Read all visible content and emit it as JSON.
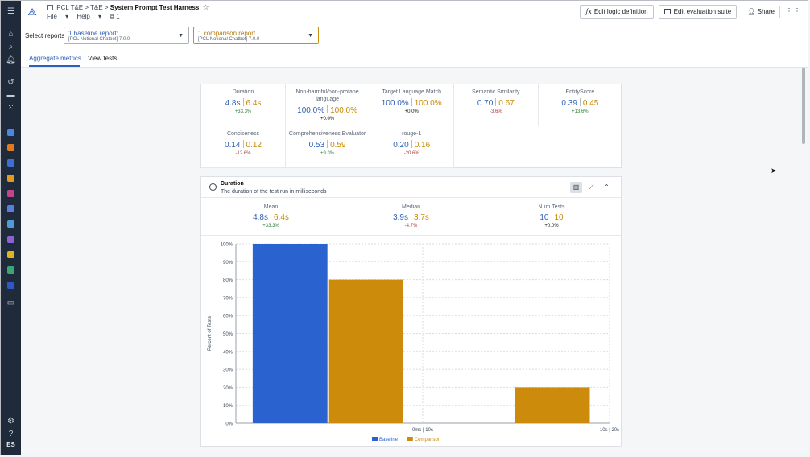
{
  "breadcrumb": {
    "path": "PCL T&E > T&E >",
    "title": "System Prompt Test Harness",
    "badge": "1"
  },
  "menus": {
    "file": "File",
    "help": "Help"
  },
  "top_actions": {
    "logic": "Edit logic definition",
    "suite": "Edit evaluation suite",
    "share": "Share"
  },
  "select_reports": {
    "label": "Select reports",
    "baseline": {
      "title": "1 baseline report:",
      "sub": "[PCL Notional Chatbot] 7.0.0"
    },
    "comparison": {
      "title": "1 comparison report",
      "sub": "[PCL Notional Chatbot] 7.0.0"
    }
  },
  "tabs": {
    "aggregate": "Aggregate metrics",
    "view": "View tests"
  },
  "metrics": [
    {
      "name": "Duration",
      "base": "4.8s",
      "comp": "6.4s",
      "delta": "+33.3%",
      "tone": "pos"
    },
    {
      "name": "Non-harmful/non-profane language",
      "base": "100.0%",
      "comp": "100.0%",
      "delta": "+0.0%",
      "tone": "neu"
    },
    {
      "name": "Target Language Match",
      "base": "100.0%",
      "comp": "100.0%",
      "delta": "+0.0%",
      "tone": "neu"
    },
    {
      "name": "Semantic Similarity",
      "base": "0.70",
      "comp": "0.67",
      "delta": "-3.6%",
      "tone": "neg"
    },
    {
      "name": "EntityScore",
      "base": "0.39",
      "comp": "0.45",
      "delta": "+13.6%",
      "tone": "pos"
    },
    {
      "name": "Conciseness",
      "base": "0.14",
      "comp": "0.12",
      "delta": "-12.6%",
      "tone": "neg"
    },
    {
      "name": "Comprehensiveness Evaluator",
      "base": "0.53",
      "comp": "0.59",
      "delta": "+9.3%",
      "tone": "pos"
    },
    {
      "name": "rouge-1",
      "base": "0.20",
      "comp": "0.16",
      "delta": "-20.6%",
      "tone": "neg"
    }
  ],
  "duration_panel": {
    "title": "Duration",
    "subtitle": "The duration of the test run in milliseconds",
    "stats": [
      {
        "name": "Mean",
        "base": "4.8s",
        "comp": "6.4s",
        "delta": "+33.3%",
        "tone": "pos"
      },
      {
        "name": "Median",
        "base": "3.9s",
        "comp": "3.7s",
        "delta": "-4.7%",
        "tone": "neg"
      },
      {
        "name": "Num Tests",
        "base": "10",
        "comp": "10",
        "delta": "+0.0%",
        "tone": "neu"
      }
    ]
  },
  "colors": {
    "baseline": "#2a63cf",
    "comparison": "#cc8b0a",
    "accent": "#2d5fb8"
  },
  "chart_data": {
    "type": "bar",
    "categories": [
      "0ms | 10s",
      "10s | 20s"
    ],
    "series": [
      {
        "name": "Baseline",
        "values": [
          100,
          0
        ]
      },
      {
        "name": "Comparison",
        "values": [
          80,
          20
        ]
      }
    ],
    "ylabel": "Percent of Tests",
    "ylim": [
      0,
      100
    ],
    "yticks": [
      "0%",
      "10%",
      "20%",
      "30%",
      "40%",
      "50%",
      "60%",
      "70%",
      "80%",
      "90%",
      "100%"
    ],
    "grid": true,
    "legend": "bottom-center"
  }
}
